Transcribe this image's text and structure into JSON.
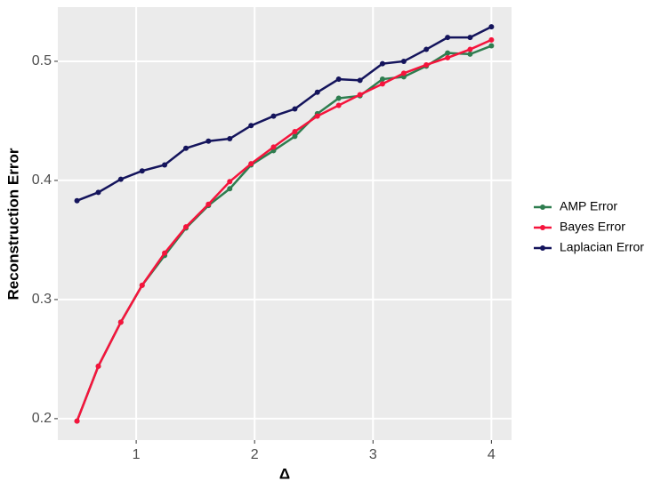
{
  "chart_data": {
    "type": "line",
    "x": [
      0.5,
      0.68,
      0.87,
      1.05,
      1.24,
      1.42,
      1.61,
      1.79,
      1.97,
      2.16,
      2.34,
      2.53,
      2.71,
      2.89,
      3.08,
      3.26,
      3.45,
      3.63,
      3.82,
      4.0
    ],
    "series": [
      {
        "name": "AMP Error",
        "color": "#2e7d4f",
        "values": [
          0.198,
          0.244,
          0.281,
          0.312,
          0.337,
          0.36,
          0.379,
          0.393,
          0.413,
          0.425,
          0.437,
          0.456,
          0.469,
          0.471,
          0.485,
          0.487,
          0.496,
          0.507,
          0.506,
          0.513
        ]
      },
      {
        "name": "Bayes Error",
        "color": "#f5143c",
        "values": [
          0.198,
          0.244,
          0.281,
          0.312,
          0.339,
          0.361,
          0.38,
          0.399,
          0.414,
          0.428,
          0.441,
          0.454,
          0.463,
          0.472,
          0.481,
          0.49,
          0.497,
          0.503,
          0.51,
          0.518
        ]
      },
      {
        "name": "Laplacian Error",
        "color": "#14145c",
        "values": [
          0.383,
          0.39,
          0.401,
          0.408,
          0.413,
          0.427,
          0.433,
          0.435,
          0.446,
          0.454,
          0.46,
          0.474,
          0.485,
          0.484,
          0.498,
          0.5,
          0.51,
          0.52,
          0.52,
          0.529
        ]
      }
    ],
    "xlabel": "Δ",
    "ylabel": "Reconstruction Error",
    "xlim": [
      0.338,
      4.17
    ],
    "ylim": [
      0.182,
      0.5455
    ],
    "xticks": [
      1,
      2,
      3,
      4
    ],
    "yticks": [
      0.2,
      0.3,
      0.4,
      0.5
    ],
    "grid": true,
    "legend": "right"
  }
}
